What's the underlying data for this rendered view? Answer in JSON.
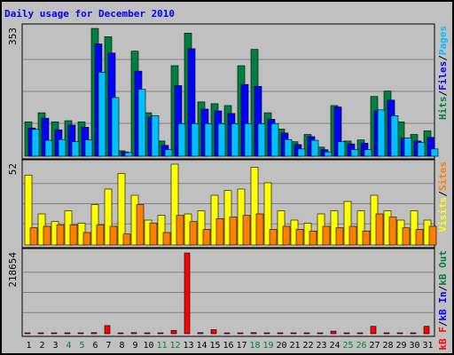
{
  "chart_data": {
    "type": "bar",
    "title": "Daily usage for December 2010",
    "days": [
      "1",
      "2",
      "3",
      "4",
      "5",
      "6",
      "7",
      "8",
      "9",
      "10",
      "11",
      "12",
      "13",
      "14",
      "15",
      "16",
      "17",
      "18",
      "19",
      "20",
      "21",
      "22",
      "23",
      "24",
      "25",
      "26",
      "27",
      "28",
      "29",
      "30",
      "31"
    ],
    "weekend_days": [
      "4",
      "5",
      "11",
      "12",
      "18",
      "19",
      "25",
      "26"
    ],
    "panels": [
      {
        "id": "top",
        "ymax_label": "353",
        "ymax": 353,
        "grid": true,
        "legend_right": [
          {
            "name": "Hits",
            "color": "#008040"
          },
          {
            "name": "/",
            "color": "#000000"
          },
          {
            "name": "Files",
            "color": "#0000ff"
          },
          {
            "name": "/",
            "color": "#000000"
          },
          {
            "name": "Pages",
            "color": "#00c0ff"
          }
        ],
        "series": [
          {
            "name": "Hits",
            "color": "#008040",
            "values": [
              95,
              120,
              95,
              98,
              95,
              353,
              330,
              15,
              290,
              120,
              42,
              250,
              340,
              150,
              145,
              140,
              250,
              295,
              120,
              75,
              40,
              60,
              25,
              140,
              42,
              45,
              165,
              180,
              95,
              60,
              70
            ]
          },
          {
            "name": "Files",
            "color": "#0000ff",
            "values": [
              78,
              105,
              73,
              86,
              80,
              310,
              285,
              12,
              235,
              108,
              30,
              195,
              297,
              130,
              125,
              118,
              198,
              193,
              102,
              64,
              32,
              54,
              18,
              136,
              34,
              36,
              125,
              155,
              50,
              42,
              52
            ]
          },
          {
            "name": "Pages",
            "color": "#00c0ff",
            "values": [
              74,
              44,
              46,
              40,
              45,
              232,
              162,
              10,
              185,
              112,
              18,
              90,
              90,
              90,
              90,
              90,
              90,
              90,
              90,
              46,
              20,
              44,
              12,
              40,
              18,
              18,
              128,
              112,
              50,
              38,
              20
            ]
          }
        ]
      },
      {
        "id": "middle",
        "ymax_label": "52",
        "ymax": 52,
        "grid": true,
        "legend_right": [
          {
            "name": "Visits",
            "color": "#ffff00"
          },
          {
            "name": "/",
            "color": "#000000"
          },
          {
            "name": "Sites",
            "color": "#ff8000"
          }
        ],
        "series": [
          {
            "name": "Visits",
            "color": "#ffff00",
            "values": [
              45,
              20,
              15,
              22,
              14,
              26,
              36,
              46,
              32,
              16,
              19,
              52,
              20,
              22,
              32,
              35,
              36,
              50,
              40,
              22,
              16,
              14,
              20,
              22,
              28,
              22,
              32,
              22,
              16,
              22,
              16
            ]
          },
          {
            "name": "Sites",
            "color": "#ff8000",
            "values": [
              11,
              12,
              13,
              13,
              8,
              13,
              12,
              7,
              26,
              14,
              8,
              19,
              15,
              10,
              17,
              18,
              19,
              20,
              10,
              12,
              10,
              9,
              12,
              11,
              12,
              9,
              20,
              18,
              11,
              10,
              12
            ]
          }
        ]
      },
      {
        "id": "bottom",
        "ymax_label": "218654",
        "ymax": 218654,
        "grid": true,
        "legend_right": [
          {
            "name": "kB F",
            "color": "#ff0000"
          },
          {
            "name": "/",
            "color": "#000000"
          },
          {
            "name": "kB In",
            "color": "#0000ff"
          },
          {
            "name": "/",
            "color": "#000000"
          },
          {
            "name": "kB Out",
            "color": "#008040"
          }
        ],
        "series": [
          {
            "name": "kB F",
            "color": "#ff0000",
            "values": [
              2000,
              1500,
              1500,
              1500,
              1500,
              3000,
              22000,
              2000,
              3000,
              2000,
              2000,
              9000,
              218654,
              3000,
              11000,
              2000,
              2000,
              3000,
              2000,
              2000,
              2000,
              2000,
              2000,
              7000,
              2000,
              2000,
              20000,
              2000,
              2000,
              2000,
              20000
            ]
          }
        ]
      }
    ]
  }
}
